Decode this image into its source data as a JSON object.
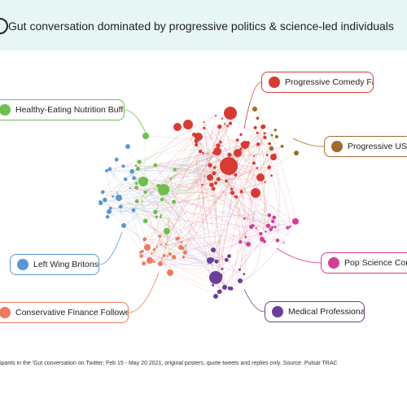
{
  "header": {
    "title": "Gut conversation dominated by progressive politics & science-led individuals",
    "icon": "gut-icon",
    "background": "#e8f5f5"
  },
  "segments": [
    {
      "key": "progressive_comedy",
      "label": "Progressive Comedy Fans",
      "color": "#d83a34"
    },
    {
      "key": "healthy_eating",
      "label": "Healthy-Eating Nutrition Buffs",
      "color": "#6dbf4b"
    },
    {
      "key": "progressive_us",
      "label": "Progressive US Pet",
      "color": "#a06a2c"
    },
    {
      "key": "left_wing",
      "label": "Left Wing Britons",
      "color": "#5a96d2"
    },
    {
      "key": "pop_science",
      "label": "Pop Science Comm",
      "color": "#d63d96"
    },
    {
      "key": "conservative_finance",
      "label": "Conservative Finance Followers",
      "color": "#ec7a5f"
    },
    {
      "key": "medical",
      "label": "Medical Professionals",
      "color": "#6b3f98"
    }
  ],
  "footnote": "ipants in the 'Gut conversation on Twitter; Feb 15 - May 20 2021, original posters, quote tweets and replies only. Source: Pulsar TRAC"
}
